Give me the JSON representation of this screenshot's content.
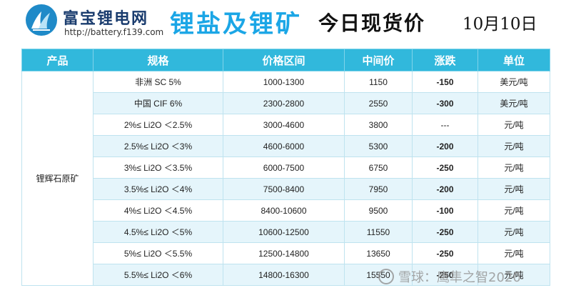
{
  "brand": {
    "name": "富宝锂电网",
    "url": "http://battery.f139.com"
  },
  "title": {
    "main": "锂盐及锂矿",
    "sub": "今日现货价",
    "date": "10月10日"
  },
  "table": {
    "headers": [
      "产品",
      "规格",
      "价格区间",
      "中间价",
      "涨跌",
      "单位"
    ],
    "product": "锂辉石原矿",
    "rows": [
      {
        "spec": "非洲 SC 5%",
        "range": "1000-1300",
        "mid": "1150",
        "change": "-150",
        "unit": "美元/吨"
      },
      {
        "spec": "中国 CIF 6%",
        "range": "2300-2800",
        "mid": "2550",
        "change": "-300",
        "unit": "美元/吨"
      },
      {
        "spec": "2%≤ Li2O ＜2.5%",
        "range": "3000-4600",
        "mid": "3800",
        "change": "---",
        "unit": "元/吨"
      },
      {
        "spec": "2.5%≤ Li2O ＜3%",
        "range": "4600-6000",
        "mid": "5300",
        "change": "-200",
        "unit": "元/吨"
      },
      {
        "spec": "3%≤ Li2O ＜3.5%",
        "range": "6000-7500",
        "mid": "6750",
        "change": "-250",
        "unit": "元/吨"
      },
      {
        "spec": "3.5%≤ Li2O ＜4%",
        "range": "7500-8400",
        "mid": "7950",
        "change": "-200",
        "unit": "元/吨"
      },
      {
        "spec": "4%≤ Li2O ＜4.5%",
        "range": "8400-10600",
        "mid": "9500",
        "change": "-100",
        "unit": "元/吨"
      },
      {
        "spec": "4.5%≤ Li2O ＜5%",
        "range": "10600-12500",
        "mid": "11550",
        "change": "-250",
        "unit": "元/吨"
      },
      {
        "spec": "5%≤ Li2O ＜5.5%",
        "range": "12500-14800",
        "mid": "13650",
        "change": "-250",
        "unit": "元/吨"
      },
      {
        "spec": "5.5%≤ Li2O ＜6%",
        "range": "14800-16300",
        "mid": "15550",
        "change": "-250",
        "unit": "元/吨"
      }
    ]
  },
  "watermark": {
    "text": "雪球：鹰隼之智2020"
  },
  "colors": {
    "header_bg": "#31b8dc",
    "title_blue": "#1ba6e6",
    "change_green": "#2d7d2d",
    "stripe": "#e5f5fb"
  }
}
